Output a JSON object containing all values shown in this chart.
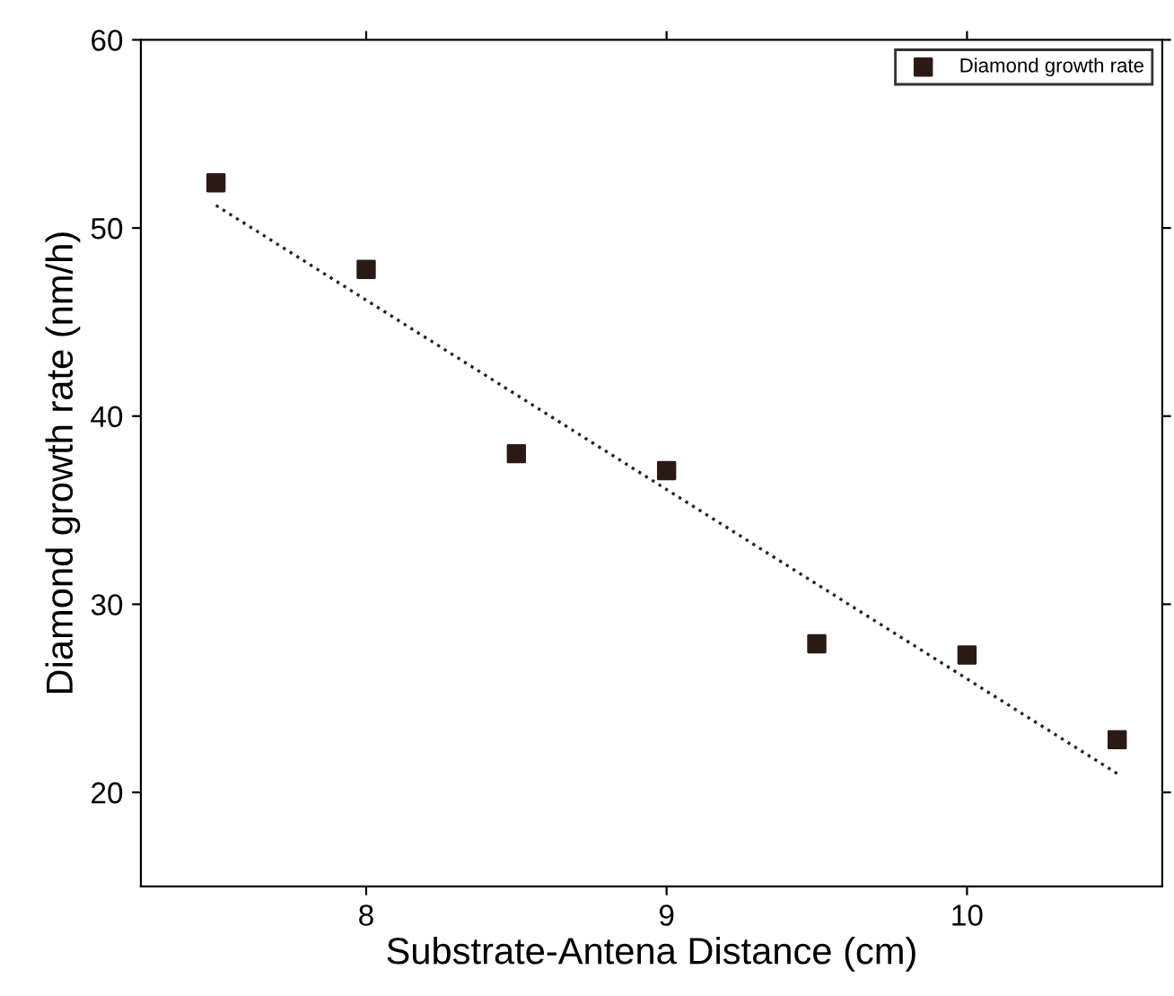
{
  "chart_data": {
    "type": "scatter",
    "xlabel": "Substrate-Antena Distance (cm)",
    "ylabel": "Diamond growth rate (nm/h)",
    "series": [
      {
        "name": "Diamond growth rate",
        "color": "#2b1a14",
        "marker": "square",
        "x": [
          7.5,
          8,
          8.5,
          9,
          9.5,
          10,
          10.5
        ],
        "values": [
          52.4,
          47.8,
          38.0,
          37.1,
          27.9,
          27.3,
          22.8
        ]
      },
      {
        "type": "line",
        "color": "#222222",
        "line_style": "dotted",
        "marker": "none",
        "x": [
          7.5,
          10.5
        ],
        "values": [
          51.2,
          21.0
        ]
      }
    ],
    "xlim": [
      7.25,
      10.65
    ],
    "xticks": [
      8,
      9,
      10
    ],
    "ylim": [
      15,
      60
    ],
    "yticks": [
      20,
      30,
      40,
      50,
      60
    ],
    "grid": false,
    "legend": "top right"
  }
}
